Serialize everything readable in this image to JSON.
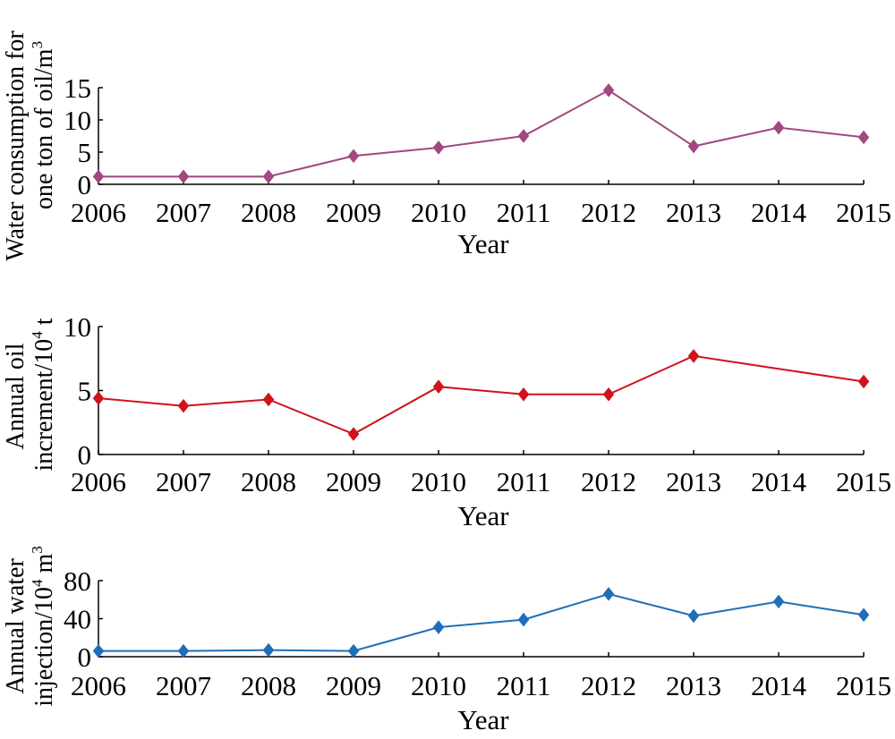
{
  "chart_data": [
    {
      "type": "line",
      "x": [
        "2006",
        "2007",
        "2008",
        "2009",
        "2010",
        "2011",
        "2012",
        "2013",
        "2014",
        "2015"
      ],
      "series": [
        {
          "values": [
            1.2,
            1.2,
            1.2,
            4.4,
            5.7,
            7.5,
            14.6,
            5.9,
            8.8,
            7.3
          ],
          "color": "#A2477F"
        }
      ],
      "xlabel": "Year",
      "ylabel_lines": [
        "Water consumption for",
        "one ton of oil/m",
        "3"
      ],
      "ylim": [
        0,
        15
      ],
      "yticks": [
        "0",
        "5",
        "10",
        "15"
      ],
      "marker": "diamond"
    },
    {
      "type": "line",
      "x": [
        "2006",
        "2007",
        "2008",
        "2009",
        "2010",
        "2011",
        "2012",
        "2013",
        "2014",
        "2015"
      ],
      "series": [
        {
          "values": [
            4.4,
            3.8,
            4.3,
            1.6,
            5.3,
            4.7,
            4.7,
            7.7,
            6.7,
            5.7
          ],
          "color": "#D0121B",
          "marker_mask": [
            1,
            1,
            1,
            1,
            1,
            1,
            1,
            1,
            0,
            1
          ]
        }
      ],
      "xlabel": "Year",
      "ylabel_lines": [
        "Annual oil",
        "increment/10",
        "4",
        " t"
      ],
      "ylim": [
        0,
        10
      ],
      "yticks": [
        "0",
        "5",
        "10"
      ],
      "marker": "diamond"
    },
    {
      "type": "line",
      "x": [
        "2006",
        "2007",
        "2008",
        "2009",
        "2010",
        "2011",
        "2012",
        "2013",
        "2014",
        "2015"
      ],
      "series": [
        {
          "values": [
            6,
            6,
            7,
            6,
            31,
            39,
            66,
            43,
            58,
            44
          ],
          "color": "#1F6FB8"
        }
      ],
      "xlabel": "Year",
      "ylabel_lines": [
        "Annual water",
        "injection/10",
        "4",
        " m",
        "3"
      ],
      "ylim": [
        0,
        80
      ],
      "yticks": [
        "0",
        "40",
        "80"
      ],
      "marker": "diamond"
    }
  ]
}
